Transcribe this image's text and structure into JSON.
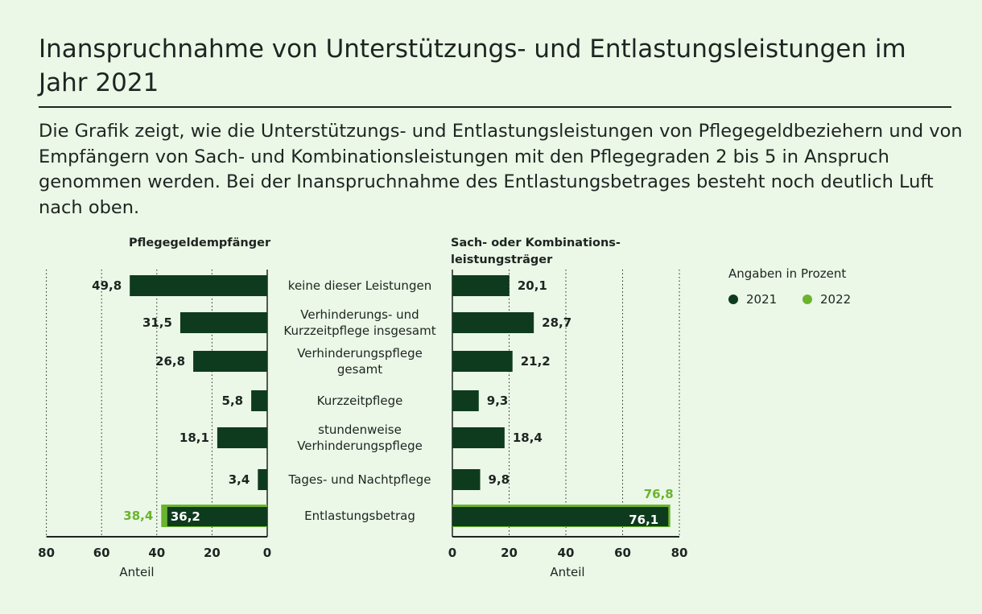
{
  "title": "Inanspruchnahme von Unterstützungs- und Entlastungsleistungen im Jahr 2021",
  "subtitle": "Die Grafik zeigt, wie die Unterstützungs- und Entlastungsleistungen von Pflegegeldbeziehern und von Empfängern von Sach- und Kombinationsleistungen mit den Pflegegraden 2 bis 5 in Anspruch genommen werden. Bei der Inanspruchnahme des Entlastungsbetrages besteht noch deutlich Luft nach oben.",
  "legend": {
    "title": "Angaben in Prozent",
    "items": [
      {
        "label": "2021",
        "color": "#0e3b1e"
      },
      {
        "label": "2022",
        "color": "#6ab42d"
      }
    ]
  },
  "chart_data": [
    {
      "type": "bar",
      "title": "Pflegegeldempfänger",
      "orientation": "horizontal",
      "direction": "right-to-left",
      "categories": [
        [
          "keine dieser Leistungen"
        ],
        [
          "Verhinderungs- und",
          "Kurzzeitpflege insgesamt"
        ],
        [
          "Verhinderungspflege",
          "gesamt"
        ],
        [
          "Kurzzeitpflege"
        ],
        [
          "stundenweise",
          "Verhinderungspflege"
        ],
        [
          "Tages- und Nachtpflege"
        ],
        [
          "Entlastungsbetrag"
        ]
      ],
      "series": [
        {
          "name": "2021",
          "values": [
            49.8,
            31.5,
            26.8,
            5.8,
            18.1,
            3.4,
            36.2
          ],
          "labels": [
            "49,8",
            "31,5",
            "26,8",
            "5,8",
            "18,1",
            "3,4",
            "36,2"
          ]
        },
        {
          "name": "2022",
          "values": [
            null,
            null,
            null,
            null,
            null,
            null,
            38.4
          ],
          "labels": [
            "",
            "",
            "",
            "",
            "",
            "",
            "38,4"
          ]
        }
      ],
      "xlim": [
        0,
        80
      ],
      "ticks": [
        "0",
        "20",
        "40",
        "60",
        "80"
      ],
      "xlabel": "Anteil",
      "grid": true
    },
    {
      "type": "bar",
      "title": "Sach- oder Kombinationsleistungsträger",
      "title_lines": [
        "Sach- oder Kombinations-",
        "leistungsträger"
      ],
      "orientation": "horizontal",
      "direction": "left-to-right",
      "series": [
        {
          "name": "2021",
          "values": [
            20.1,
            28.7,
            21.2,
            9.3,
            18.4,
            9.8,
            76.1
          ],
          "labels": [
            "20,1",
            "28,7",
            "21,2",
            "9,3",
            "18,4",
            "9,8",
            "76,1"
          ]
        },
        {
          "name": "2022",
          "values": [
            null,
            null,
            null,
            null,
            null,
            null,
            76.8
          ],
          "labels": [
            "",
            "",
            "",
            "",
            "",
            "",
            "76,8"
          ]
        }
      ],
      "xlim": [
        0,
        80
      ],
      "ticks": [
        "0",
        "20",
        "40",
        "60",
        "80"
      ],
      "xlabel": "Anteil",
      "grid": true
    }
  ]
}
